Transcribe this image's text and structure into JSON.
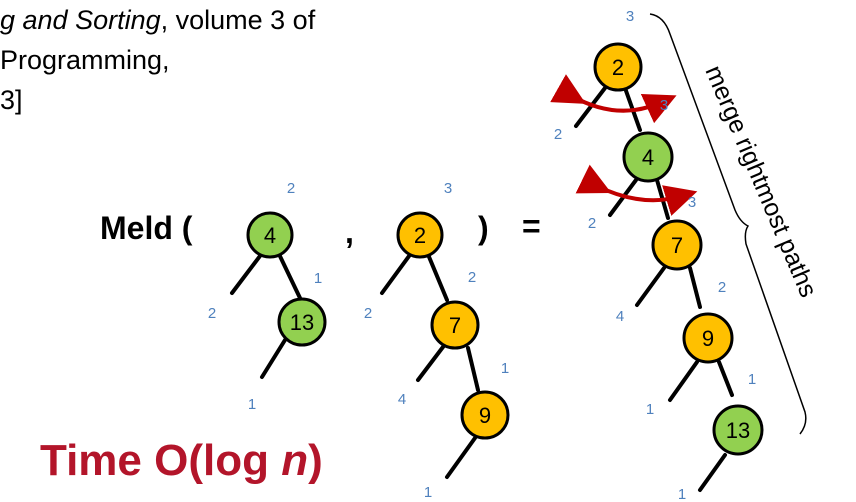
{
  "reference": {
    "line1_italic": "g and Sorting",
    "line1_rest": ", volume 3 of",
    "line2": " Programming,",
    "line3": "3]"
  },
  "meld_label": "Meld (",
  "comma": ",",
  "close_paren": ")",
  "equals": "=",
  "time": {
    "prefix": "Time O(log ",
    "var": "n",
    "suffix": ")"
  },
  "bracket_label": "merge rightmost paths",
  "colors": {
    "green": "#92d050",
    "orange": "#ffc000",
    "arrow": "#c00000",
    "rank": "#4f81bd",
    "time": "#b3152a"
  },
  "trees": {
    "left_a": {
      "nodes": [
        "4",
        "13"
      ],
      "ranks": [
        "2",
        "2",
        "1",
        "1"
      ]
    },
    "left_b": {
      "nodes": [
        "2",
        "7",
        "9"
      ],
      "ranks": [
        "3",
        "2",
        "2",
        "4",
        "1",
        "1"
      ]
    },
    "result": {
      "nodes": [
        "2",
        "4",
        "7",
        "9",
        "13"
      ],
      "ranks": [
        "3",
        "2",
        "3",
        "2",
        "3",
        "4",
        "2",
        "1",
        "1",
        "1"
      ]
    }
  }
}
